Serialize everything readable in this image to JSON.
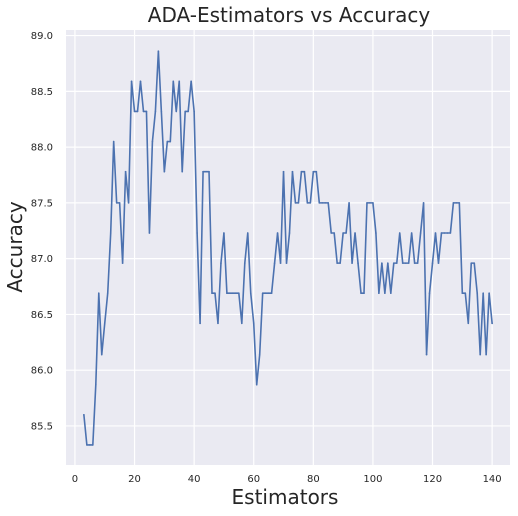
{
  "chart_data": {
    "type": "line",
    "title": "ADA-Estimators vs Accuracy",
    "xlabel": "Estimators",
    "ylabel": "Accuracy",
    "xlim": [
      -3,
      146
    ],
    "ylim": [
      85.15,
      89.05
    ],
    "xticks": [
      0,
      20,
      40,
      60,
      80,
      100,
      120,
      140
    ],
    "yticks": [
      85.5,
      86.0,
      86.5,
      87.0,
      87.5,
      88.0,
      88.5,
      89.0
    ],
    "ytick_labels": [
      "85.5",
      "86.0",
      "86.5",
      "87.0",
      "87.5",
      "88.0",
      "88.5",
      "89.0"
    ],
    "grid": true,
    "legend": false,
    "colors": {
      "background": "#eaeaf2",
      "grid": "#ffffff",
      "line": "#4c72b0"
    },
    "series": [
      {
        "x": [
          3,
          4,
          5,
          6,
          7,
          8,
          9,
          10,
          11,
          12,
          13,
          14,
          15,
          16,
          17,
          18,
          19,
          20,
          21,
          22,
          23,
          24,
          25,
          26,
          27,
          28,
          29,
          30,
          31,
          32,
          33,
          34,
          35,
          36,
          37,
          38,
          39,
          40,
          41,
          42,
          43,
          44,
          45,
          46,
          47,
          48,
          49,
          50,
          51,
          52,
          53,
          54,
          55,
          56,
          57,
          58,
          59,
          60,
          61,
          62,
          63,
          64,
          65,
          66,
          67,
          68,
          69,
          70,
          71,
          72,
          73,
          74,
          75,
          76,
          77,
          78,
          79,
          80,
          81,
          82,
          83,
          84,
          85,
          86,
          87,
          88,
          89,
          90,
          91,
          92,
          93,
          94,
          95,
          96,
          97,
          98,
          99,
          100,
          101,
          102,
          103,
          104,
          105,
          106,
          107,
          108,
          109,
          110,
          111,
          112,
          113,
          114,
          115,
          116,
          117,
          118,
          119,
          120,
          121,
          122,
          123,
          124,
          125,
          126,
          127,
          128,
          129,
          130,
          131,
          132,
          133,
          134,
          135,
          136,
          137,
          138,
          139,
          140
        ],
        "y": [
          85.6,
          85.33,
          85.33,
          85.33,
          85.87,
          86.69,
          86.14,
          86.42,
          86.69,
          87.23,
          88.05,
          87.5,
          87.5,
          86.96,
          87.78,
          87.5,
          88.59,
          88.32,
          88.32,
          88.59,
          88.32,
          88.32,
          87.23,
          88.05,
          88.32,
          88.86,
          88.32,
          87.78,
          88.05,
          88.05,
          88.59,
          88.32,
          88.59,
          87.78,
          88.32,
          88.32,
          88.59,
          88.32,
          87.23,
          86.42,
          87.78,
          87.78,
          87.78,
          86.69,
          86.69,
          86.42,
          86.96,
          87.23,
          86.69,
          86.69,
          86.69,
          86.69,
          86.69,
          86.42,
          86.96,
          87.23,
          86.69,
          86.42,
          85.87,
          86.14,
          86.69,
          86.69,
          86.69,
          86.69,
          86.96,
          87.23,
          86.96,
          87.78,
          86.96,
          87.23,
          87.78,
          87.5,
          87.5,
          87.78,
          87.78,
          87.5,
          87.5,
          87.78,
          87.78,
          87.5,
          87.5,
          87.5,
          87.5,
          87.23,
          87.23,
          86.96,
          86.96,
          87.23,
          87.23,
          87.5,
          86.96,
          87.23,
          86.96,
          86.69,
          86.69,
          87.5,
          87.5,
          87.5,
          87.23,
          86.69,
          86.96,
          86.69,
          86.96,
          86.69,
          86.96,
          86.96,
          87.23,
          86.96,
          86.96,
          86.96,
          87.23,
          86.96,
          86.96,
          87.23,
          87.5,
          86.14,
          86.69,
          86.96,
          87.23,
          86.96,
          87.23,
          87.23,
          87.23,
          87.23,
          87.5,
          87.5,
          87.5,
          86.69,
          86.69,
          86.42,
          86.96,
          86.96,
          86.69,
          86.14,
          86.69,
          86.14,
          86.69,
          86.42
        ]
      }
    ]
  }
}
